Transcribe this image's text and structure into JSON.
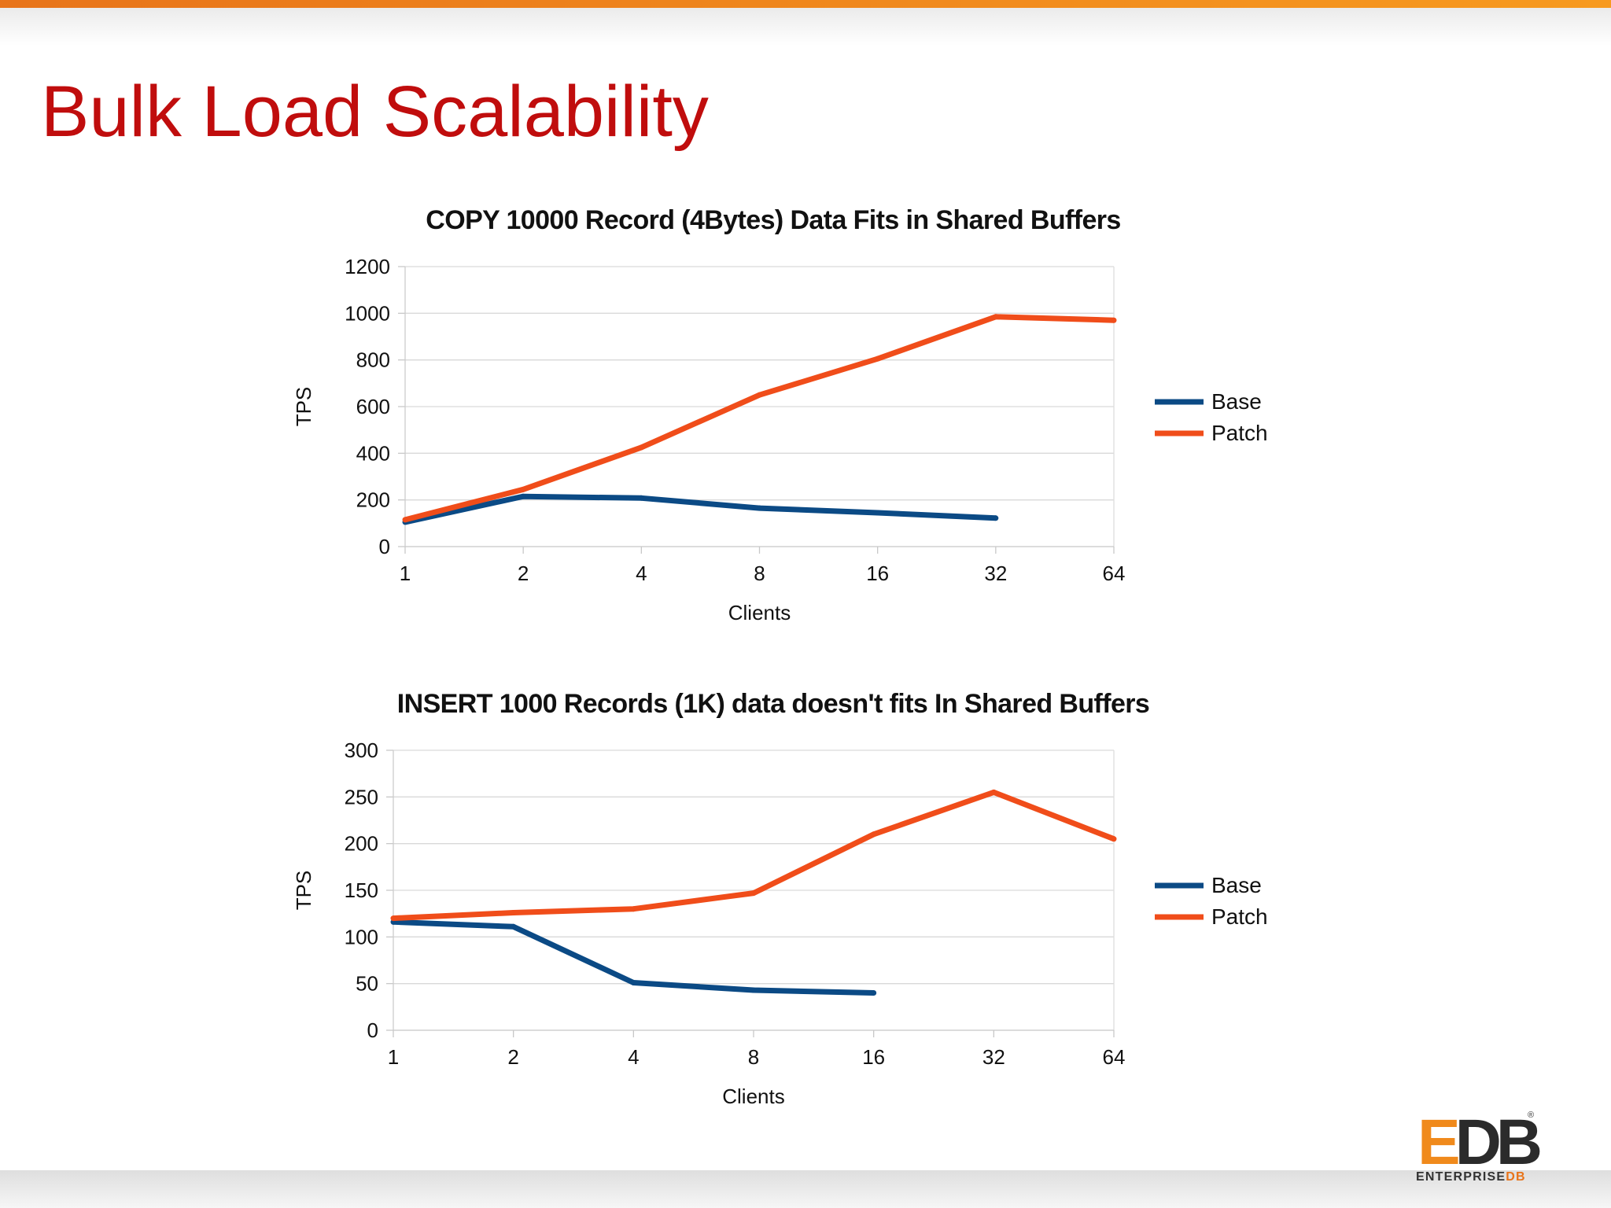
{
  "slide": {
    "title": "Bulk Load Scalability"
  },
  "logo": {
    "mark_e": "E",
    "mark_db": "DB",
    "registered": "®",
    "text_main": "ENTERPRISE",
    "text_accent": "DB"
  },
  "colors": {
    "title": "#c00d0d",
    "top_bar": "#f08a1c",
    "base_series": "#0b4a85",
    "patch_series": "#f04d1a",
    "gridline": "#d9d9d9"
  },
  "chart_data": [
    {
      "type": "line",
      "title": "COPY 10000 Record (4Bytes) Data Fits in Shared Buffers",
      "xlabel": "Clients",
      "ylabel": "TPS",
      "categories": [
        "1",
        "2",
        "4",
        "8",
        "16",
        "32",
        "64"
      ],
      "ylim": [
        0,
        1200
      ],
      "yticks": [
        "0",
        "200",
        "400",
        "600",
        "800",
        "1000",
        "1200"
      ],
      "grid": true,
      "legend": "right",
      "series": [
        {
          "name": "Base",
          "values": [
            105,
            215,
            208,
            165,
            145,
            122,
            null
          ]
        },
        {
          "name": "Patch",
          "values": [
            115,
            245,
            425,
            650,
            805,
            985,
            970
          ]
        }
      ]
    },
    {
      "type": "line",
      "title": "INSERT 1000 Records (1K) data doesn't fits In Shared Buffers",
      "xlabel": "Clients",
      "ylabel": "TPS",
      "categories": [
        "1",
        "2",
        "4",
        "8",
        "16",
        "32",
        "64"
      ],
      "ylim": [
        0,
        300
      ],
      "yticks": [
        "0",
        "50",
        "100",
        "150",
        "200",
        "250",
        "300"
      ],
      "grid": true,
      "legend": "right",
      "series": [
        {
          "name": "Base",
          "values": [
            116,
            111,
            51,
            43,
            40,
            null,
            null
          ]
        },
        {
          "name": "Patch",
          "values": [
            120,
            126,
            130,
            147,
            210,
            255,
            205
          ]
        }
      ]
    }
  ]
}
